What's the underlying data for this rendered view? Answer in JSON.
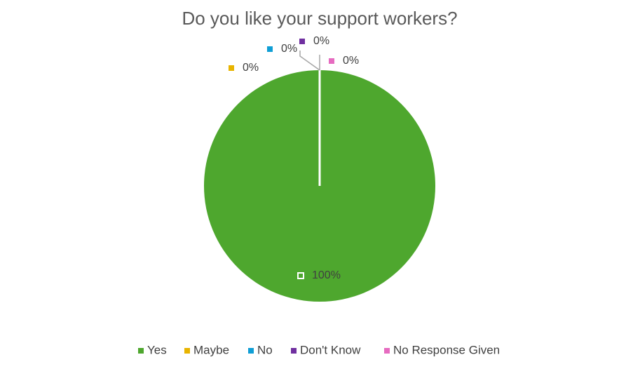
{
  "chart_data": {
    "type": "pie",
    "title": "Do you like your support workers?",
    "categories": [
      "Yes",
      "Maybe",
      "No",
      "Don't Know",
      "No Response Given"
    ],
    "values": [
      100,
      0,
      0,
      0,
      0
    ],
    "value_labels": [
      "100%",
      "0%",
      "0%",
      "0%",
      "0%"
    ],
    "colors": [
      "#4ea72e",
      "#e8b400",
      "#0f9ed5",
      "#7030a0",
      "#e66bc0"
    ],
    "legend": "bottom"
  }
}
